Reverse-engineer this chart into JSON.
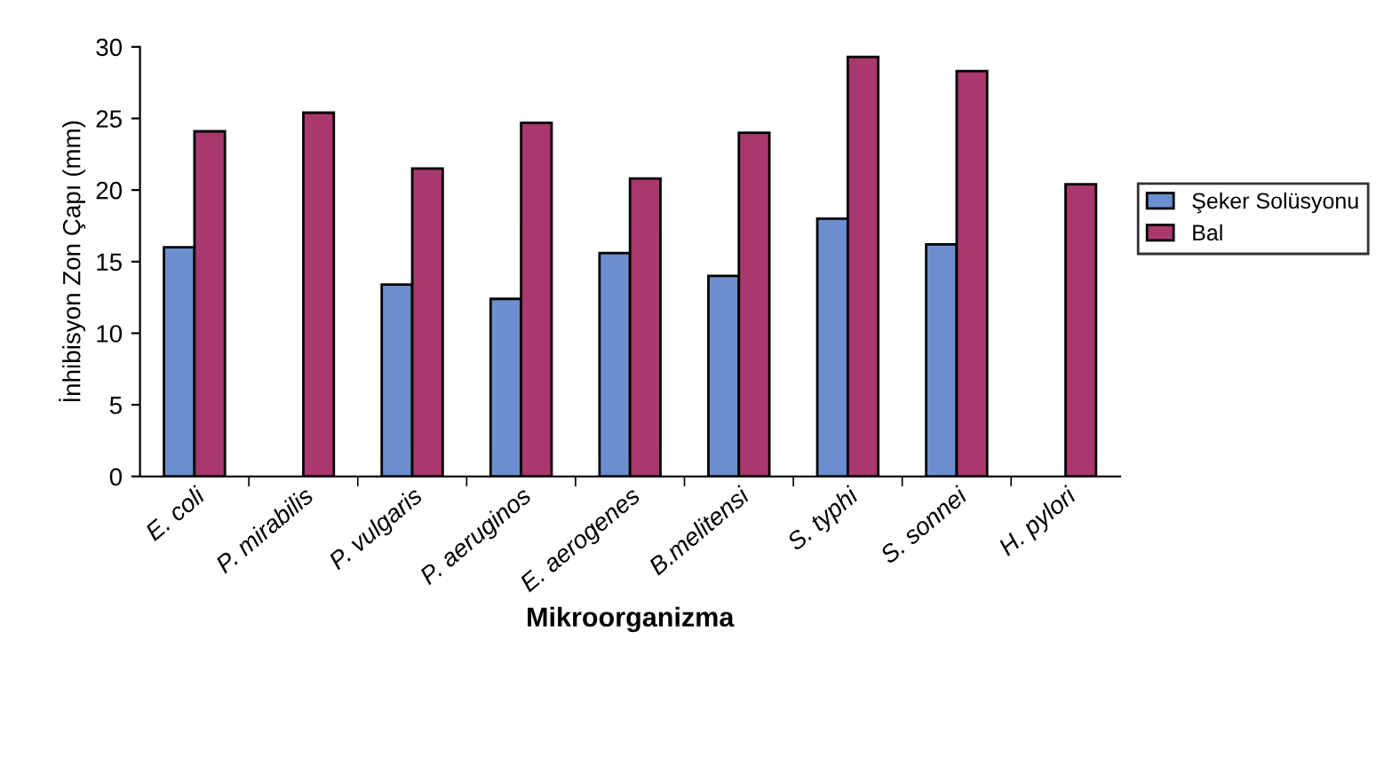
{
  "chart_data": {
    "type": "bar",
    "xlabel": "Mikroorganizma",
    "ylabel": "İnhibisyon Zon Çapı (mm)",
    "categories": [
      "E. coli",
      "P. mirabilis",
      "P. vulgaris",
      "P. aeruginos",
      "E. aerogenes",
      "B.melitensi",
      "S. typhi",
      "S. sonnei",
      "H. pylori"
    ],
    "series": [
      {
        "name": "Şeker Solüsyonu",
        "color": "#6c8fd0",
        "values": [
          16.0,
          null,
          13.4,
          12.4,
          15.6,
          14.0,
          18.0,
          16.2,
          null
        ]
      },
      {
        "name": "Bal",
        "color": "#a8386e",
        "values": [
          24.1,
          25.4,
          21.5,
          24.7,
          20.8,
          24.0,
          29.3,
          28.3,
          20.4
        ]
      }
    ],
    "ylim": [
      0,
      30
    ],
    "yticks": [
      0,
      5,
      10,
      15,
      20,
      25,
      30
    ],
    "grid": false,
    "legend": "right"
  }
}
